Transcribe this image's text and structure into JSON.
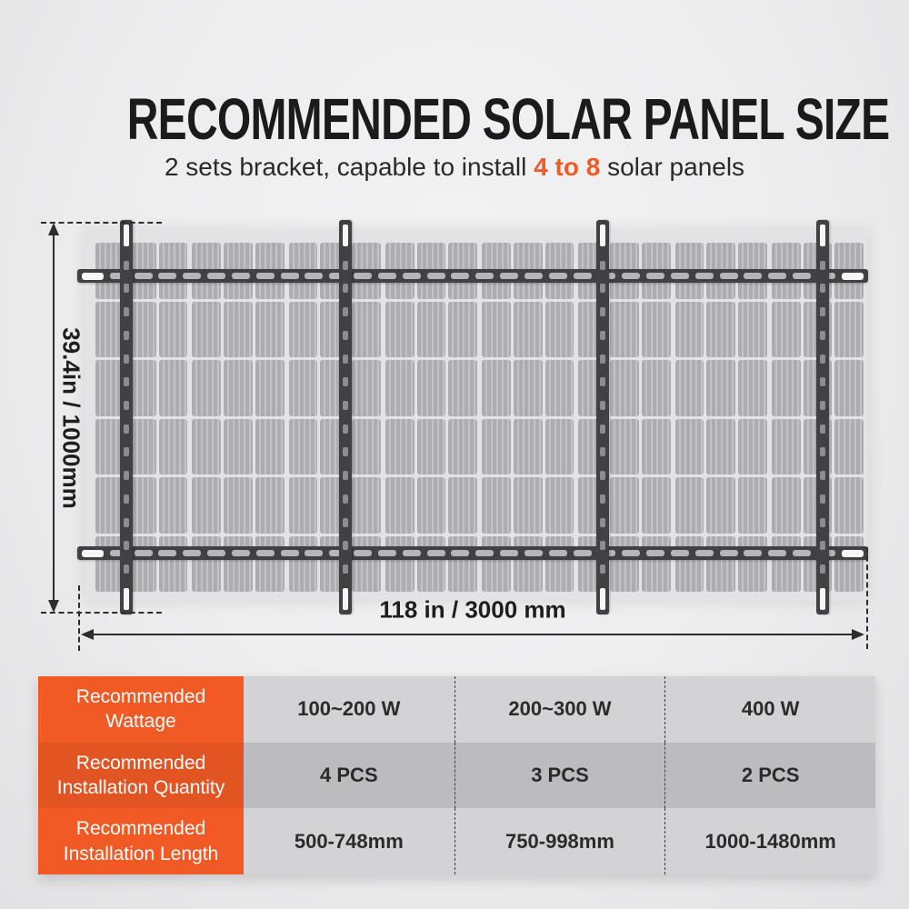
{
  "header": {
    "title": "RECOMMENDED SOLAR PANEL SIZE",
    "subtitle_prefix": "2 sets bracket, capable to install ",
    "subtitle_highlight": "4 to 8",
    "subtitle_suffix": " solar panels"
  },
  "diagram": {
    "height_label": "39.4in / 1000mm",
    "width_label": "118 in / 3000 mm",
    "panels": 8,
    "cell_cols_per_panel": 3,
    "cell_rows": 6,
    "horizontal_rails": 2,
    "vertical_rails": 4,
    "hrail_slots": 32,
    "vrail_slots": 14
  },
  "table": {
    "rows": [
      {
        "label": "Recommended Wattage",
        "values": [
          "100~200 W",
          "200~300 W",
          "400 W"
        ]
      },
      {
        "label": "Recommended Installation Quantity",
        "values": [
          "4 PCS",
          "3 PCS",
          "2 PCS"
        ]
      },
      {
        "label": "Recommended Installation Length",
        "values": [
          "500-748mm",
          "750-998mm",
          "1000-1480mm"
        ]
      }
    ]
  },
  "colors": {
    "accent": "#f15a24",
    "accent_dark": "#e25522",
    "row_light": "#d3d3d5",
    "row_dark": "#bcbcbe",
    "rail": "#414143",
    "panel_cell": "#b3b3b5",
    "dimension": "#2d2d2d"
  }
}
